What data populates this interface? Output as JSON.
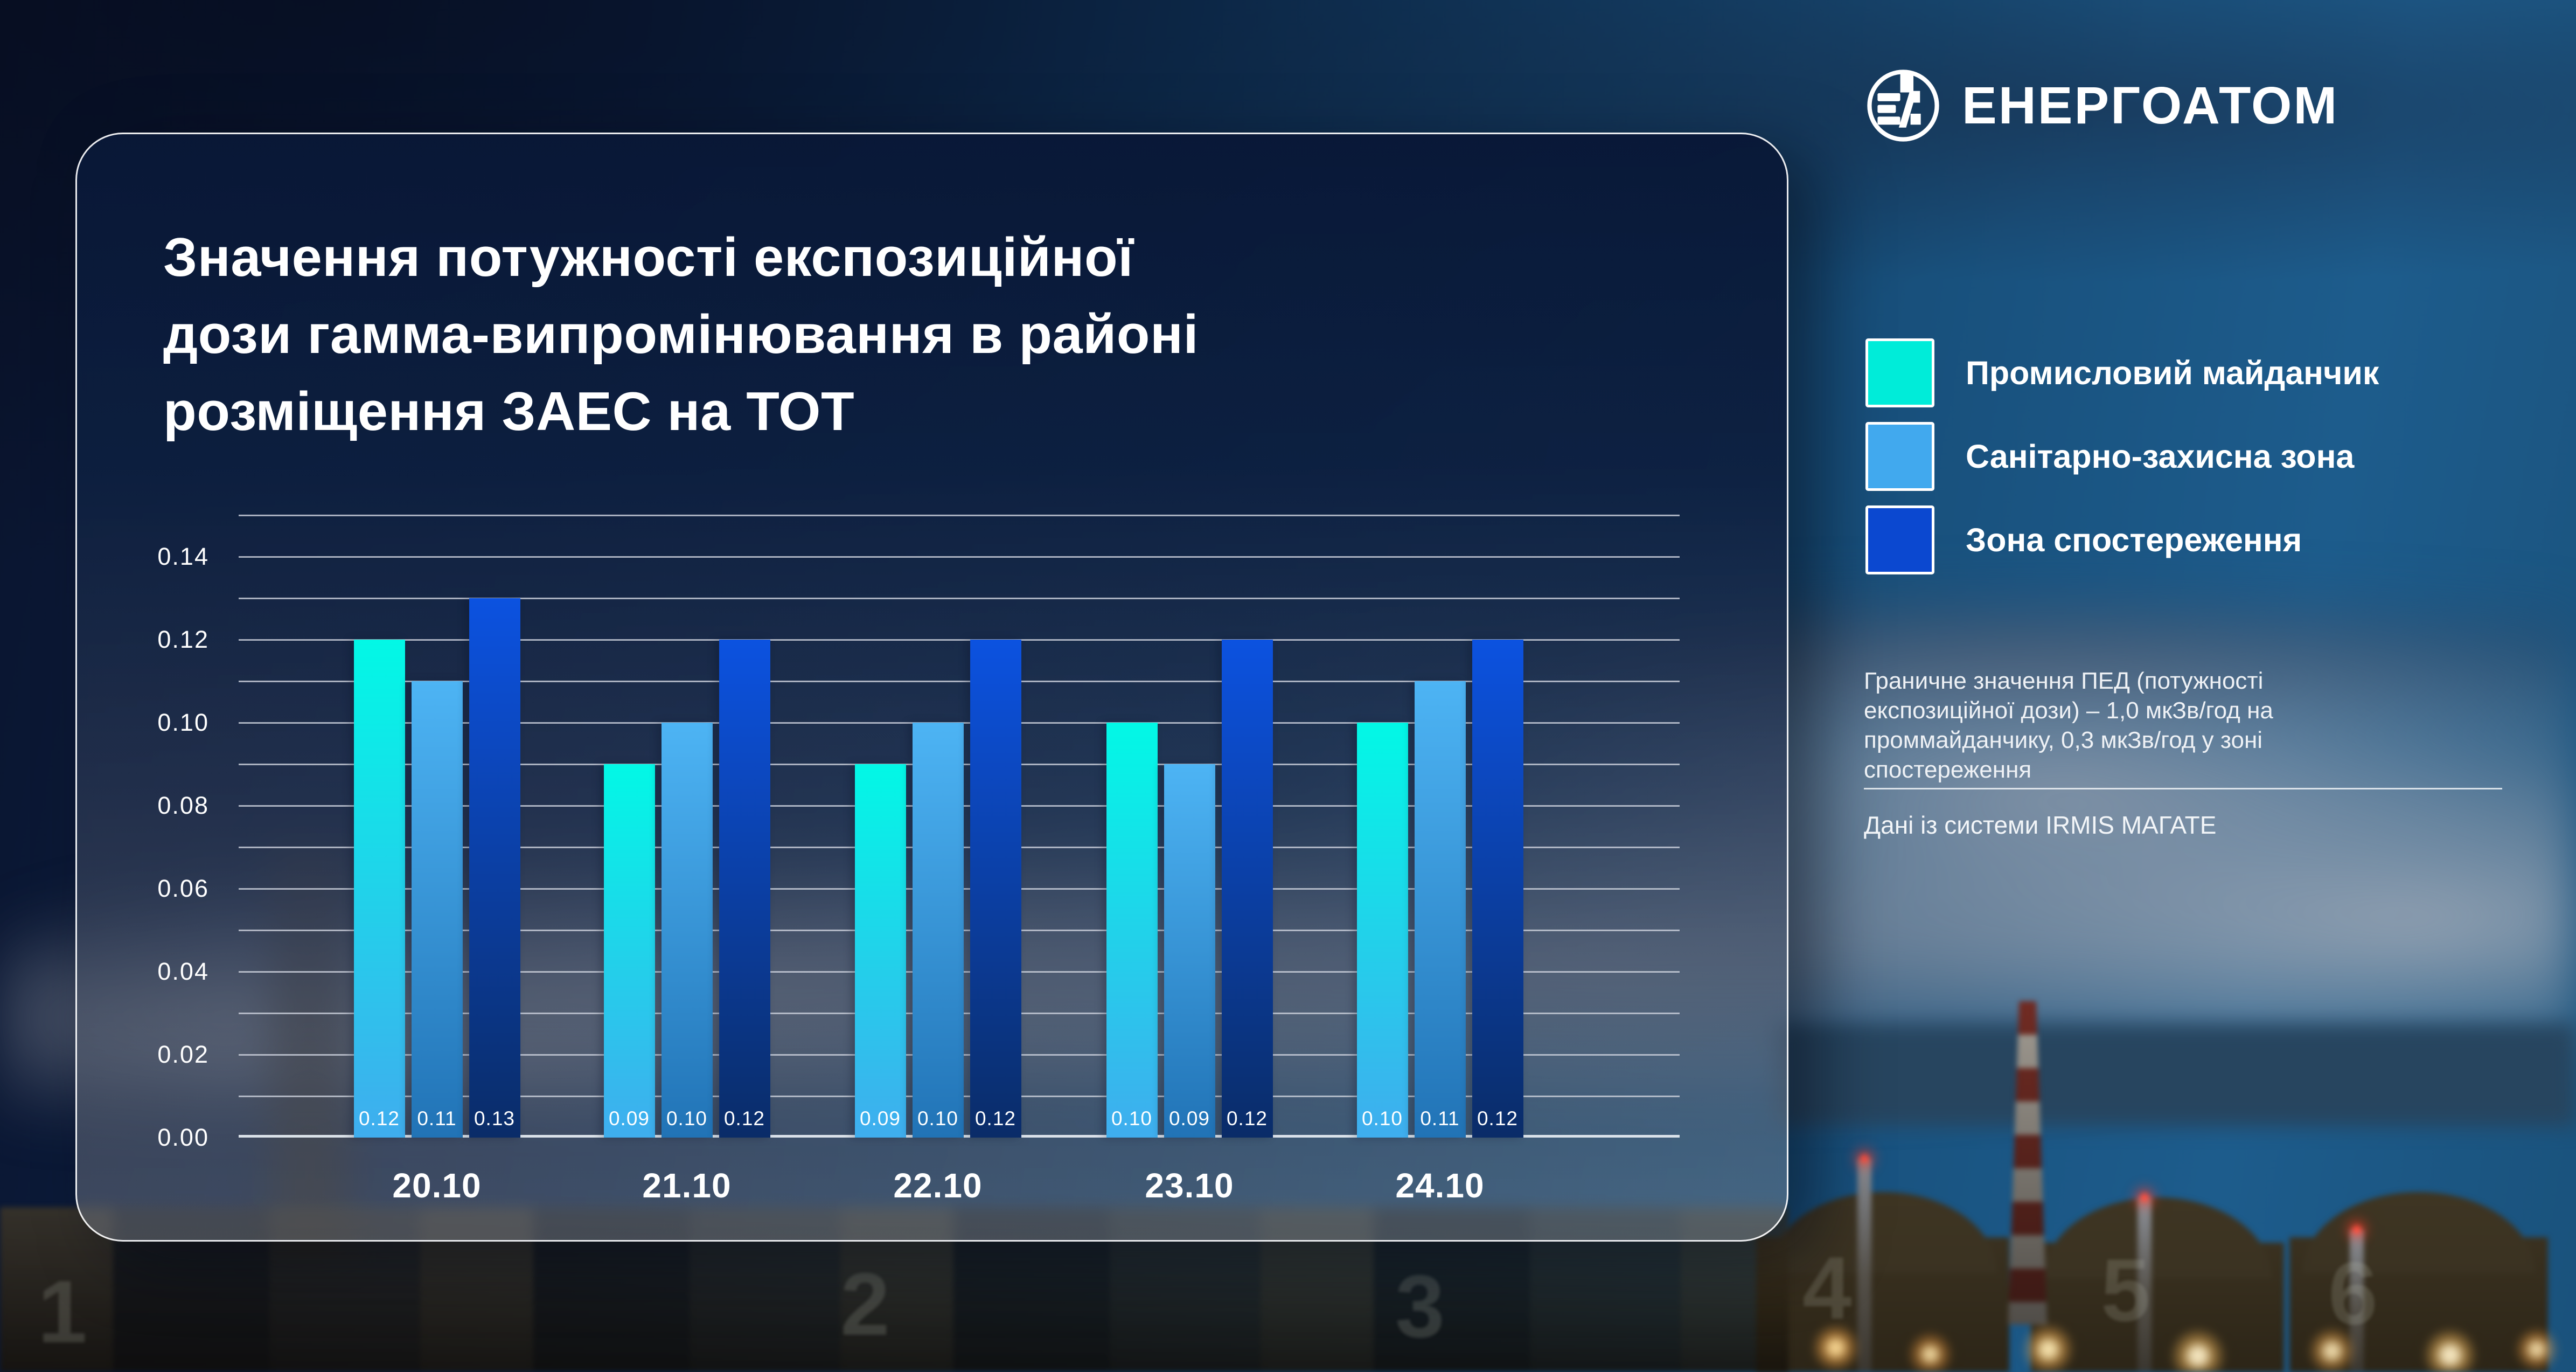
{
  "brand": {
    "name": "ЕНЕРГОАТОМ"
  },
  "card": {
    "title": "Значення потужності експозиційної\nдози гамма-випромінювання в районі\nрозміщення ЗАЕС на ТОТ"
  },
  "legend": [
    {
      "label": "Промисловий майданчик",
      "color": "#00ecd9"
    },
    {
      "label": "Санітарно-захисна зона",
      "color": "#41a9ee"
    },
    {
      "label": "Зона спостереження",
      "color": "#0b48d0"
    }
  ],
  "notes": {
    "limit_text": "Граничне значення ПЕД (потужності\nекспозиційної дози) – 1,0 мкЗв/год на\nпроммайданчику, 0,3 мкЗв/год у зоні\nспостереження",
    "source_text": "Дані із системи IRMIS МАГАТЕ"
  },
  "chart_data": {
    "type": "bar",
    "title": "Значення потужності експозиційної дози гамма-випромінювання в районі розміщення ЗАЕС на ТОТ",
    "xlabel": "",
    "ylabel": "",
    "unit": "мкЗв/год",
    "categories": [
      "20.10",
      "21.10",
      "22.10",
      "23.10",
      "24.10"
    ],
    "series": [
      {
        "name": "Промисловий майданчик",
        "values": [
          0.12,
          0.09,
          0.09,
          0.1,
          0.1
        ],
        "color_top": "#02f8e6",
        "color_bottom": "#3fadee"
      },
      {
        "name": "Санітарно-захисна зона",
        "values": [
          0.11,
          0.1,
          0.1,
          0.09,
          0.11
        ],
        "color_top": "#4db4f4",
        "color_bottom": "#2173b6"
      },
      {
        "name": "Зона спостереження",
        "values": [
          0.13,
          0.12,
          0.12,
          0.12,
          0.12
        ],
        "color_top": "#0c52e0",
        "color_bottom": "#0a2c68"
      }
    ],
    "y_ticks": [
      "0.00",
      "0.02",
      "0.04",
      "0.06",
      "0.08",
      "0.10",
      "0.12",
      "0.14"
    ],
    "ylim": [
      0,
      0.15
    ],
    "grid_step": 0.01,
    "grid": true,
    "legend_position": "right"
  },
  "background": {
    "building_numbers": [
      "1",
      "2",
      "3",
      "4",
      "5",
      "6"
    ]
  }
}
